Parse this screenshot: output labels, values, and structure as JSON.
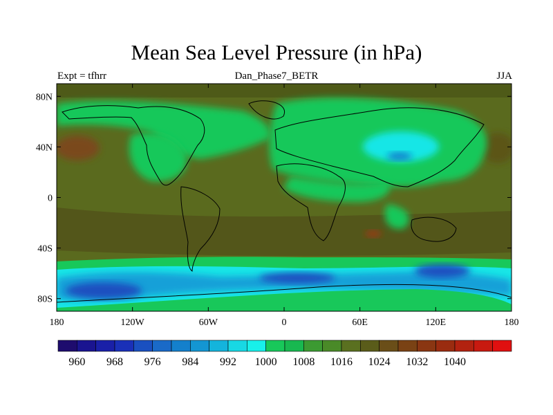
{
  "title": "Mean Sea Level Pressure (in hPa)",
  "subtitle": "Dan_Phase7_BETR",
  "left_label": "Expt = tfhrr",
  "right_label": "JJA",
  "colors": {
    "deep_low": "#1a6ac8",
    "low": "#14a0d8",
    "cyan": "#18e6e6",
    "green": "#18c85a",
    "olive": "#5a6a1e",
    "brown": "#7a4a1a",
    "red_brown": "#9a3a14"
  },
  "chart_data": {
    "type": "heatmap",
    "variable": "Mean Sea Level Pressure",
    "units": "hPa",
    "season": "JJA",
    "x_ticks": [
      {
        "value": -180,
        "label": "180"
      },
      {
        "value": -120,
        "label": "120W"
      },
      {
        "value": -60,
        "label": "60W"
      },
      {
        "value": 0,
        "label": "0"
      },
      {
        "value": 60,
        "label": "60E"
      },
      {
        "value": 120,
        "label": "120E"
      },
      {
        "value": 180,
        "label": "180"
      }
    ],
    "y_ticks": [
      {
        "value": 80,
        "label": "80N"
      },
      {
        "value": 40,
        "label": "40N"
      },
      {
        "value": 0,
        "label": "0"
      },
      {
        "value": -40,
        "label": "40S"
      },
      {
        "value": -80,
        "label": "80S"
      }
    ],
    "xlim": [
      -180,
      180
    ],
    "ylim": [
      -90,
      90
    ],
    "colorbar": {
      "min": 956,
      "step": 4,
      "colors": [
        "#1e0c6e",
        "#1a1490",
        "#1a20a8",
        "#1a30b8",
        "#1a50c0",
        "#1a6ac8",
        "#1480cc",
        "#1496d2",
        "#14b4dc",
        "#18d8e4",
        "#18f0ea",
        "#18c85a",
        "#18b850",
        "#3c9a32",
        "#4a8a28",
        "#5a7020",
        "#5a5c1a",
        "#6a4e18",
        "#7a4214",
        "#8a3612",
        "#9a2c10",
        "#b22210",
        "#c81a10",
        "#e01010"
      ],
      "labels": [
        {
          "value": 960,
          "label": "960"
        },
        {
          "value": 968,
          "label": "968"
        },
        {
          "value": 976,
          "label": "976"
        },
        {
          "value": 984,
          "label": "984"
        },
        {
          "value": 992,
          "label": "992"
        },
        {
          "value": 1000,
          "label": "1000"
        },
        {
          "value": 1008,
          "label": "1008"
        },
        {
          "value": 1016,
          "label": "1016"
        },
        {
          "value": 1024,
          "label": "1024"
        },
        {
          "value": 1032,
          "label": "1032"
        },
        {
          "value": 1040,
          "label": "1040"
        }
      ]
    }
  }
}
